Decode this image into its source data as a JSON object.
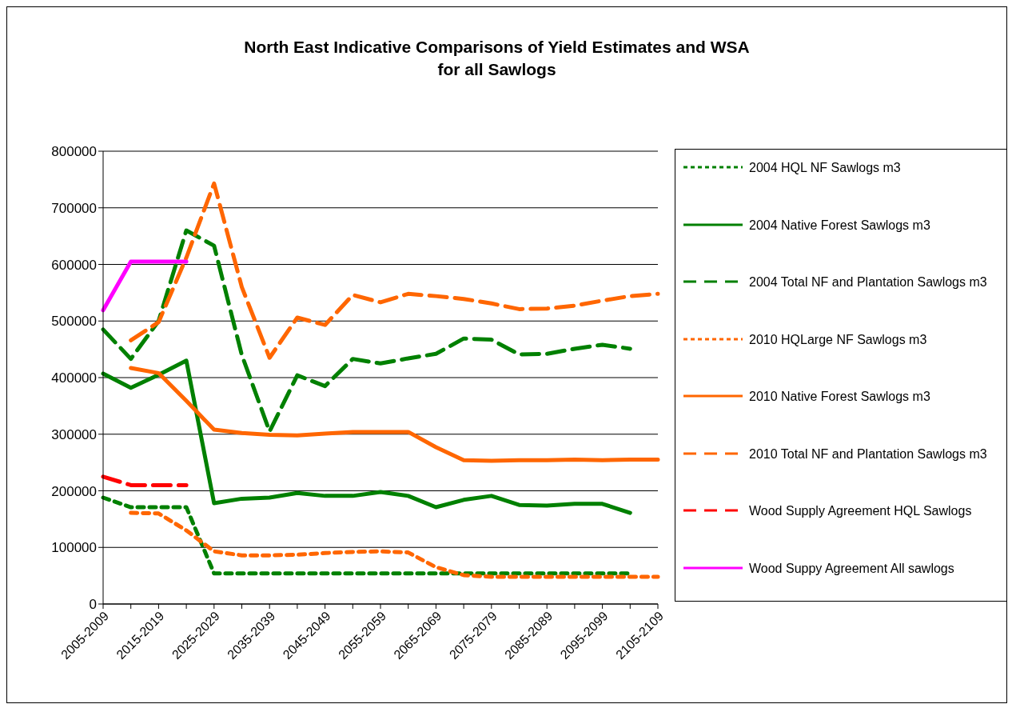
{
  "chart_data": {
    "type": "line",
    "title": "North East Indicative Comparisons of Yield Estimates and WSA\nfor all Sawlogs",
    "categories": [
      "2005-2009",
      null,
      "2015-2019",
      null,
      "2025-2029",
      null,
      "2035-2039",
      null,
      "2045-2049",
      null,
      "2055-2059",
      null,
      "2065-2069",
      null,
      "2075-2079",
      null,
      "2085-2089",
      null,
      "2095-2099",
      null,
      "2105-2109"
    ],
    "ylim": [
      0,
      800000
    ],
    "yticks": [
      0,
      100000,
      200000,
      300000,
      400000,
      500000,
      600000,
      700000,
      800000
    ],
    "grid": "y",
    "legend": "right",
    "marker": "none",
    "series": [
      {
        "name": "2004 HQL NF Sawlogs m3",
        "color": "#008000",
        "line_style": "dotted",
        "values": [
          188000,
          171000,
          171000,
          171000,
          54000,
          54000,
          54000,
          54000,
          54000,
          54000,
          54000,
          54000,
          54000,
          54000,
          54000,
          54000,
          54000,
          54000,
          54000,
          54000,
          null
        ]
      },
      {
        "name": "2004 Native Forest Sawlogs m3",
        "color": "#008000",
        "line_style": "solid",
        "values": [
          407000,
          382000,
          405000,
          430000,
          178000,
          186000,
          188000,
          196000,
          191000,
          191000,
          198000,
          191000,
          171000,
          184000,
          191000,
          175000,
          174000,
          177000,
          177000,
          161000,
          null
        ]
      },
      {
        "name": "2004 Total NF and Plantation Sawlogs m3",
        "color": "#008000",
        "line_style": "dashed",
        "values": [
          485000,
          433000,
          500000,
          660000,
          633000,
          440000,
          305000,
          404000,
          385000,
          433000,
          425000,
          434000,
          442000,
          469000,
          467000,
          441000,
          442000,
          451000,
          458000,
          451000,
          null
        ]
      },
      {
        "name": "2010 HQLarge NF Sawlogs m3",
        "color": "#ff6600",
        "line_style": "dotted",
        "values": [
          null,
          161000,
          160000,
          130000,
          93000,
          86000,
          86000,
          87000,
          90000,
          92000,
          93000,
          91000,
          65000,
          51000,
          48000,
          48000,
          48000,
          48000,
          48000,
          48000,
          48000
        ]
      },
      {
        "name": "2010 Native Forest Sawlogs m3",
        "color": "#ff6600",
        "line_style": "solid",
        "values": [
          null,
          417000,
          408000,
          359000,
          308000,
          302000,
          299000,
          298000,
          301000,
          304000,
          304000,
          304000,
          277000,
          254000,
          253000,
          254000,
          254000,
          255000,
          254000,
          255000,
          255000
        ]
      },
      {
        "name": "2010 Total NF and Plantation Sawlogs m3",
        "color": "#ff6600",
        "line_style": "dashed",
        "values": [
          null,
          466000,
          498000,
          612000,
          743000,
          560000,
          435000,
          506000,
          493000,
          546000,
          533000,
          548000,
          544000,
          539000,
          531000,
          521000,
          522000,
          527000,
          536000,
          544000,
          548000
        ]
      },
      {
        "name": "Wood Supply Agreement HQL Sawlogs",
        "color": "#ff0000",
        "line_style": "dashed",
        "values": [
          225000,
          210000,
          210000,
          210000,
          null,
          null,
          null,
          null,
          null,
          null,
          null,
          null,
          null,
          null,
          null,
          null,
          null,
          null,
          null,
          null,
          null
        ]
      },
      {
        "name": "Wood Suppy Agreement All sawlogs",
        "color": "#ff00ff",
        "line_style": "solid",
        "values": [
          519000,
          605000,
          605000,
          605000,
          null,
          null,
          null,
          null,
          null,
          null,
          null,
          null,
          null,
          null,
          null,
          null,
          null,
          null,
          null,
          null,
          null
        ]
      }
    ]
  }
}
